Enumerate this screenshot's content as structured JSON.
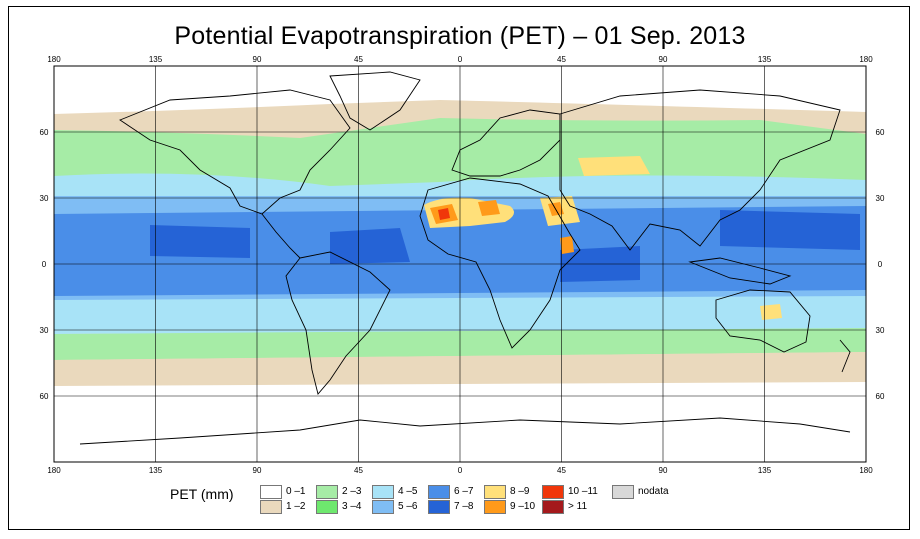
{
  "title": "Potential Evapotranspiration (PET) – 01 Sep. 2013",
  "axes": {
    "lon_top": [
      "180",
      "135",
      "90",
      "45",
      "0",
      "45",
      "90",
      "135",
      "180"
    ],
    "lon_bottom": [
      "180",
      "135",
      "90",
      "45",
      "0",
      "45",
      "90",
      "135",
      "180"
    ],
    "lat_left": [
      "60",
      "30",
      "0",
      "30",
      "60"
    ],
    "lat_right": [
      "60",
      "30",
      "0",
      "30",
      "60"
    ]
  },
  "legend": {
    "title": "PET (mm)",
    "items": [
      {
        "label": "0 –1",
        "color": "#ffffff"
      },
      {
        "label": "1 –2",
        "color": "#ead9bd"
      },
      {
        "label": "2 –3",
        "color": "#a6eca6"
      },
      {
        "label": "3 –4",
        "color": "#6ee86e"
      },
      {
        "label": "4 –5",
        "color": "#a8e3f7"
      },
      {
        "label": "5 –6",
        "color": "#7fbdf4"
      },
      {
        "label": "6 –7",
        "color": "#4a8ee8"
      },
      {
        "label": "7 –8",
        "color": "#2563d6"
      },
      {
        "label": "8 –9",
        "color": "#ffe07a"
      },
      {
        "label": "9 –10",
        "color": "#ff9a1a"
      },
      {
        "label": "10 –11",
        "color": "#f0360a"
      },
      {
        "label": "> 11",
        "color": "#a4191c"
      },
      {
        "label": "nodata",
        "color": "#d8d8d8"
      }
    ]
  }
}
